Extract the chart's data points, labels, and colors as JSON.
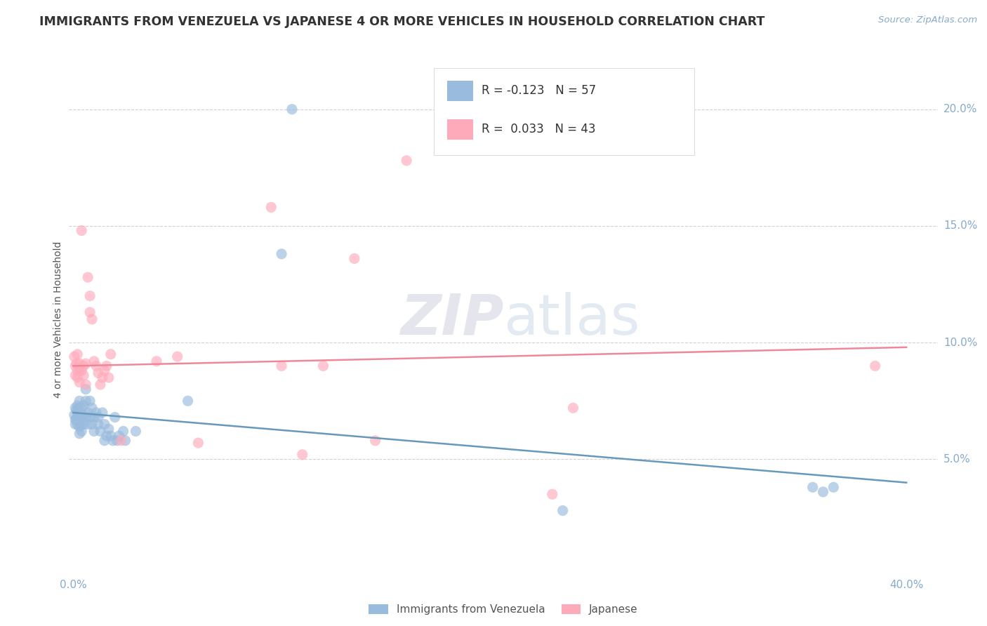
{
  "title": "IMMIGRANTS FROM VENEZUELA VS JAPANESE 4 OR MORE VEHICLES IN HOUSEHOLD CORRELATION CHART",
  "source": "Source: ZipAtlas.com",
  "ylabel": "4 or more Vehicles in Household",
  "ymin": 0.0,
  "ymax": 0.22,
  "xmin": -0.002,
  "xmax": 0.415,
  "legend_label1": "Immigrants from Venezuela",
  "legend_label2": "Japanese",
  "legend_r1": "R = -0.123",
  "legend_n1": "N = 57",
  "legend_r2": "R =  0.033",
  "legend_n2": "N = 43",
  "color_blue": "#99BBDD",
  "color_pink": "#FFAABB",
  "color_blue_line": "#6699BB",
  "color_pink_line": "#EE8899",
  "watermark_color": "#CCDDEE",
  "blue_scatter_x": [
    0.0005,
    0.001,
    0.001,
    0.001,
    0.0015,
    0.0015,
    0.002,
    0.002,
    0.002,
    0.002,
    0.0025,
    0.003,
    0.003,
    0.003,
    0.003,
    0.004,
    0.004,
    0.004,
    0.004,
    0.005,
    0.005,
    0.005,
    0.006,
    0.006,
    0.006,
    0.007,
    0.007,
    0.008,
    0.008,
    0.009,
    0.009,
    0.01,
    0.01,
    0.011,
    0.012,
    0.012,
    0.013,
    0.014,
    0.015,
    0.015,
    0.016,
    0.017,
    0.018,
    0.019,
    0.02,
    0.021,
    0.022,
    0.024,
    0.025,
    0.03,
    0.055,
    0.1,
    0.105,
    0.235,
    0.355,
    0.36,
    0.365
  ],
  "blue_scatter_y": [
    0.069,
    0.067,
    0.065,
    0.072,
    0.067,
    0.071,
    0.073,
    0.07,
    0.068,
    0.065,
    0.072,
    0.075,
    0.068,
    0.064,
    0.061,
    0.072,
    0.068,
    0.065,
    0.062,
    0.073,
    0.069,
    0.065,
    0.08,
    0.075,
    0.068,
    0.07,
    0.065,
    0.075,
    0.068,
    0.072,
    0.065,
    0.068,
    0.062,
    0.07,
    0.068,
    0.065,
    0.062,
    0.07,
    0.058,
    0.065,
    0.06,
    0.063,
    0.06,
    0.058,
    0.068,
    0.058,
    0.06,
    0.062,
    0.058,
    0.062,
    0.075,
    0.138,
    0.2,
    0.028,
    0.038,
    0.036,
    0.038
  ],
  "pink_scatter_x": [
    0.0005,
    0.001,
    0.001,
    0.0015,
    0.002,
    0.002,
    0.002,
    0.003,
    0.003,
    0.003,
    0.004,
    0.004,
    0.005,
    0.005,
    0.006,
    0.006,
    0.007,
    0.008,
    0.008,
    0.009,
    0.01,
    0.011,
    0.012,
    0.013,
    0.014,
    0.015,
    0.016,
    0.017,
    0.018,
    0.023,
    0.04,
    0.05,
    0.06,
    0.095,
    0.1,
    0.11,
    0.12,
    0.135,
    0.145,
    0.16,
    0.23,
    0.24,
    0.385
  ],
  "pink_scatter_y": [
    0.094,
    0.09,
    0.086,
    0.091,
    0.088,
    0.095,
    0.085,
    0.088,
    0.083,
    0.091,
    0.088,
    0.148,
    0.09,
    0.086,
    0.091,
    0.082,
    0.128,
    0.12,
    0.113,
    0.11,
    0.092,
    0.09,
    0.087,
    0.082,
    0.085,
    0.088,
    0.09,
    0.085,
    0.095,
    0.058,
    0.092,
    0.094,
    0.057,
    0.158,
    0.09,
    0.052,
    0.09,
    0.136,
    0.058,
    0.178,
    0.035,
    0.072,
    0.09
  ],
  "blue_line_x": [
    0.0,
    0.4
  ],
  "blue_line_y": [
    0.07,
    0.04
  ],
  "pink_line_x": [
    0.0,
    0.4
  ],
  "pink_line_y": [
    0.09,
    0.098
  ]
}
